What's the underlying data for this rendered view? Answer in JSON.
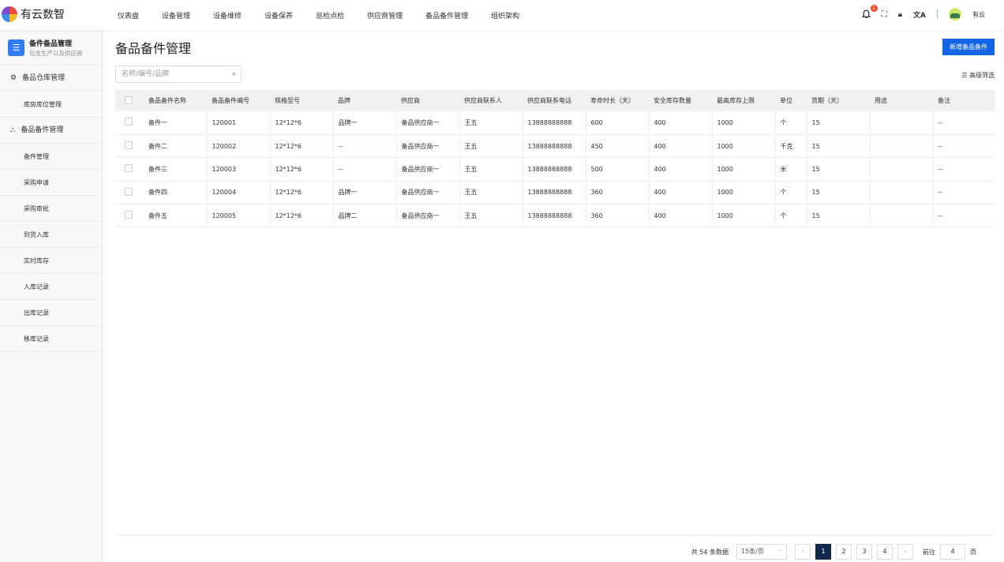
{
  "app": {
    "logo_text": "有云数智"
  },
  "nav": [
    "仪表盘",
    "设备管理",
    "设备维修",
    "设备保养",
    "巡检点检",
    "供应商管理",
    "备品备件管理",
    "组织架构"
  ],
  "header": {
    "notification_count": "1",
    "user_name": "有云"
  },
  "sidebar": {
    "title": "备件备品管理",
    "subtitle": "包含生产以及供应商",
    "group1": "备品仓库管理",
    "group1_items": [
      "库房库位管理"
    ],
    "group2": "备品备件管理",
    "group2_items": [
      "备件管理",
      "采购申请",
      "采购审批",
      "到货入库",
      "实时库存",
      "入库记录",
      "出库记录",
      "移库记录"
    ]
  },
  "page": {
    "title": "备品备件管理",
    "add_button": "新增备品备件",
    "search_placeholder": "名称/编号/品牌",
    "filter_label": "高级筛选"
  },
  "table": {
    "columns": [
      "备品备件名称",
      "备品备件编号",
      "规格型号",
      "品牌",
      "供应商",
      "供应商联系人",
      "供应商联系电话",
      "寿命时长（天）",
      "安全库存数量",
      "最高库存上限",
      "单位",
      "货期（天）",
      "用途",
      "备注"
    ],
    "rows": [
      [
        "备件一",
        "120001",
        "12*12*6",
        "品牌一",
        "备品供应商一",
        "王五",
        "13888888888",
        "600",
        "400",
        "1000",
        "个",
        "15",
        "",
        "--"
      ],
      [
        "备件二",
        "120002",
        "12*12*6",
        "--",
        "备品供应商一",
        "王五",
        "13888888888",
        "450",
        "400",
        "1000",
        "千克",
        "15",
        "",
        "--"
      ],
      [
        "备件三",
        "120003",
        "12*12*6",
        "--",
        "备品供应商一",
        "王五",
        "13888888888",
        "500",
        "400",
        "1000",
        "米",
        "15",
        "",
        "--"
      ],
      [
        "备件四",
        "120004",
        "12*12*6",
        "品牌一",
        "备品供应商一",
        "王五",
        "13888888888",
        "360",
        "400",
        "1000",
        "个",
        "15",
        "",
        "--"
      ],
      [
        "备件五",
        "120005",
        "12*12*6",
        "品牌二",
        "备品供应商一",
        "王五",
        "13888888888",
        "360",
        "400",
        "1000",
        "个",
        "15",
        "",
        "--"
      ]
    ]
  },
  "pagination": {
    "total": "共 54 条数据",
    "page_size": "15条/页",
    "pages": [
      "1",
      "2",
      "3",
      "4"
    ],
    "current": "1",
    "goto_label": "前往",
    "goto_value": "4",
    "page_unit": "页"
  },
  "colors": {
    "accent": "#1464e6",
    "active_page": "#13284d",
    "badge": "#f04b2e"
  }
}
